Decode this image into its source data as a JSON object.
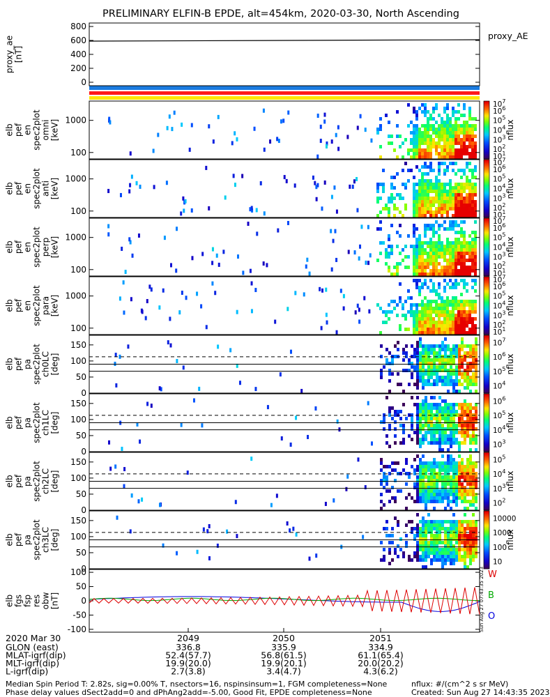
{
  "title": "PRELIMINARY ELFIN-B EPDE, alt=454km, 2020-03-30, North Ascending",
  "colors": {
    "spin_bar_blue": "#1a7be0",
    "spin_bar_red": "#ff1a1a",
    "spin_bar_yellow": "#ffe600",
    "black": "#000000"
  },
  "chart_data": [
    {
      "id": "ae",
      "type": "line",
      "ylabel": [
        "proxy_ae",
        "[nT]"
      ],
      "ylim": [
        -50,
        850
      ],
      "yticks": [
        "0",
        "200",
        "400",
        "600",
        "800"
      ],
      "ytick_values": [
        0,
        200,
        400,
        600,
        800
      ],
      "series": [
        {
          "name": "proxy_AE",
          "x": [
            0,
            1
          ],
          "y": [
            590,
            610
          ]
        }
      ]
    },
    {
      "id": "en_omni",
      "type": "heatmap",
      "ylabel": [
        "elb",
        "pef",
        "en",
        "spec2plot",
        "omni",
        "[keV]"
      ],
      "yticks": [
        "100",
        "1000"
      ],
      "ytick_values": [
        100,
        1000
      ],
      "ylog": true,
      "cbar_labels": [
        "10",
        "10",
        "10",
        "10",
        "10",
        "10",
        "10"
      ],
      "cbar_exps": [
        "1",
        "2",
        "3",
        "4",
        "5",
        "6",
        "7"
      ],
      "cbar_title": "nflux"
    },
    {
      "id": "en_anti",
      "type": "heatmap",
      "ylabel": [
        "elb",
        "pef",
        "en",
        "spec2plot",
        "anti",
        "[keV]"
      ],
      "yticks": [
        "100",
        "1000"
      ],
      "ytick_values": [
        100,
        1000
      ],
      "ylog": true,
      "cbar_labels": [
        "10",
        "10",
        "10",
        "10",
        "10",
        "10",
        "10"
      ],
      "cbar_exps": [
        "1",
        "2",
        "3",
        "4",
        "5",
        "6",
        "7"
      ],
      "cbar_title": "nflux"
    },
    {
      "id": "en_perp",
      "type": "heatmap",
      "ylabel": [
        "elb",
        "pef",
        "en",
        "spec2plot",
        "perp",
        "[keV]"
      ],
      "yticks": [
        "100",
        "1000"
      ],
      "ytick_values": [
        100,
        1000
      ],
      "ylog": true,
      "cbar_labels": [
        "10",
        "10",
        "10",
        "10",
        "10",
        "10",
        "10"
      ],
      "cbar_exps": [
        "1",
        "2",
        "3",
        "4",
        "5",
        "6",
        "7"
      ],
      "cbar_title": "nflux"
    },
    {
      "id": "en_para",
      "type": "heatmap",
      "ylabel": [
        "elb",
        "pef",
        "en",
        "spec2plot",
        "para",
        "[keV]"
      ],
      "yticks": [
        "100",
        "1000"
      ],
      "ytick_values": [
        100,
        1000
      ],
      "ylog": true,
      "cbar_labels": [
        "10",
        "10",
        "10",
        "10",
        "10",
        "10",
        "10"
      ],
      "cbar_exps": [
        "1",
        "2",
        "3",
        "4",
        "5",
        "6",
        "7"
      ],
      "cbar_title": "nflux"
    },
    {
      "id": "pa_ch0",
      "type": "heatmap",
      "ylabel": [
        "elb",
        "pef",
        "pa",
        "spec2plot",
        "ch0LC",
        "[deg]"
      ],
      "yticks": [
        "0",
        "50",
        "100",
        "150"
      ],
      "ytick_values": [
        0,
        50,
        100,
        150
      ],
      "ylim": [
        0,
        180
      ],
      "cbar_labels": [
        "10",
        "10",
        "10",
        "10"
      ],
      "cbar_exps": [
        "4",
        "5",
        "6",
        "7"
      ],
      "cbar_title": "nflux"
    },
    {
      "id": "pa_ch1",
      "type": "heatmap",
      "ylabel": [
        "elb",
        "pef",
        "pa",
        "spec2plot",
        "ch1LC",
        "[deg]"
      ],
      "yticks": [
        "0",
        "50",
        "100",
        "150"
      ],
      "ytick_values": [
        0,
        50,
        100,
        150
      ],
      "ylim": [
        0,
        180
      ],
      "cbar_labels": [
        "10",
        "10",
        "10",
        "10"
      ],
      "cbar_exps": [
        "3",
        "4",
        "5",
        "6"
      ],
      "cbar_title": "nflux"
    },
    {
      "id": "pa_ch2",
      "type": "heatmap",
      "ylabel": [
        "elb",
        "pef",
        "pa",
        "spec2plot",
        "ch2LC",
        "[deg]"
      ],
      "yticks": [
        "0",
        "50",
        "100",
        "150"
      ],
      "ytick_values": [
        0,
        50,
        100,
        150
      ],
      "ylim": [
        0,
        180
      ],
      "cbar_labels": [
        "10",
        "10",
        "10",
        "10"
      ],
      "cbar_exps": [
        "2",
        "3",
        "4",
        "5"
      ],
      "cbar_title": "nflux"
    },
    {
      "id": "pa_ch3",
      "type": "heatmap",
      "ylabel": [
        "elb",
        "pef",
        "pa",
        "spec2plot",
        "ch3LC",
        "[deg]"
      ],
      "yticks": [
        "0",
        "50",
        "100",
        "150"
      ],
      "ytick_values": [
        0,
        50,
        100,
        150
      ],
      "ylim": [
        0,
        180
      ],
      "cbar_labels": [
        "10",
        "100",
        "1000",
        "10000"
      ],
      "cbar_exps": [
        "",
        "",
        "",
        ""
      ],
      "cbar_title": "nflux"
    },
    {
      "id": "fgs",
      "type": "line",
      "ylabel": [
        "elb",
        "fgs",
        "fsp",
        "res",
        "obw",
        "[nT]"
      ],
      "yticks": [
        "-100",
        "-50",
        "0",
        "50",
        "100"
      ],
      "ytick_values": [
        -100,
        -50,
        0,
        50,
        100
      ],
      "ylim": [
        -110,
        110
      ],
      "legend": [
        "W",
        "B",
        "O"
      ],
      "legend_colors": [
        "#dd0000",
        "#00aa00",
        "#0000dd"
      ],
      "grid": false
    }
  ],
  "xaxis": {
    "date": "2020 Mar 30",
    "tick_labels": [
      "2049",
      "2050",
      "2051"
    ],
    "rows": [
      {
        "label": "GLON (east)",
        "values": [
          "336.8",
          "335.9",
          "334.9"
        ]
      },
      {
        "label": "MLAT-igrf(dip)",
        "values": [
          "52.4(57.7)",
          "56.8(61.5)",
          "61.1(65.4)"
        ]
      },
      {
        "label": "MLT-igrf(dip)",
        "values": [
          "19.9(20.0)",
          "19.9(20.1)",
          "20.0(20.2)"
        ]
      },
      {
        "label": "L-igrf(dip)",
        "values": [
          "2.7(3.8)",
          "3.4(4.7)",
          "4.3(6.2)"
        ]
      }
    ]
  },
  "footer": {
    "line1": "Median Spin Period T: 2.82s, sig=0.00% T, nsectors=16, nspinsinsum=1, FGM completeness=None",
    "line2": "Phase delay values dSect2add=0 and dPhAng2add=-5.00, Good Fit, EPDE completeness=None",
    "units": "nflux: #/(cm^2 s sr MeV)",
    "created": "Created: Sun Aug 27 14:43:35 2023",
    "side_stamp": "Sun Aug 27 07:43:35 2023"
  }
}
